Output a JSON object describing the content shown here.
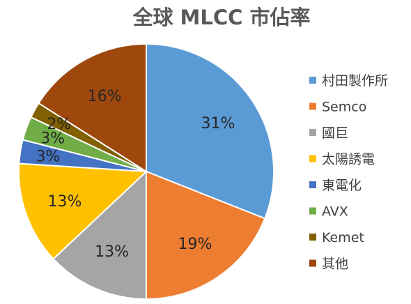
{
  "chart_data": {
    "type": "pie",
    "title": "全球 MLCC 市佔率",
    "legend_position": "right",
    "slices": [
      {
        "label": "村田製作所",
        "value": 31,
        "display": "31%",
        "color": "#5b9bd5"
      },
      {
        "label": "Semco",
        "value": 19,
        "display": "19%",
        "color": "#ed7d31"
      },
      {
        "label": "國巨",
        "value": 13,
        "display": "13%",
        "color": "#a5a5a5"
      },
      {
        "label": "太陽誘電",
        "value": 13,
        "display": "13%",
        "color": "#ffc000"
      },
      {
        "label": "東電化",
        "value": 3,
        "display": "3%",
        "color": "#4472c4"
      },
      {
        "label": "AVX",
        "value": 3,
        "display": "3%",
        "color": "#70ad47"
      },
      {
        "label": "Kemet",
        "value": 2,
        "display": "2%",
        "color": "#806000"
      },
      {
        "label": "其他",
        "value": 16,
        "display": "16%",
        "color": "#9e480e"
      }
    ]
  }
}
